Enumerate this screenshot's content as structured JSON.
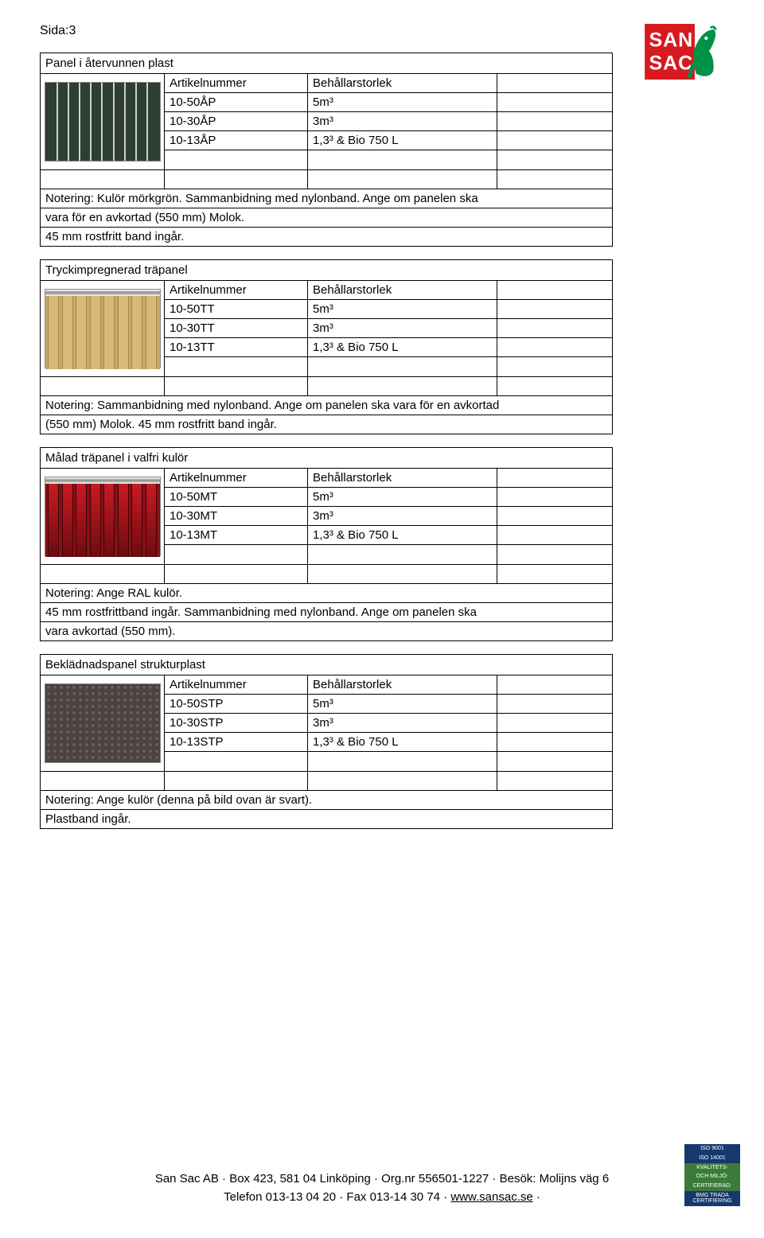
{
  "page_label": "Sida:3",
  "logo": {
    "text_top": "SAN",
    "text_bottom": "SAC",
    "colors": {
      "red": "#d71920",
      "green": "#009247",
      "white": "#ffffff"
    }
  },
  "headers": {
    "artnr": "Artikelnummer",
    "size": "Behållarstorlek"
  },
  "sections": [
    {
      "title": "Panel i återvunnen plast",
      "swatch_type": "green",
      "rows": [
        {
          "artnr": "10-50ÅP",
          "size": "5m³"
        },
        {
          "artnr": "10-30ÅP",
          "size": "3m³"
        },
        {
          "artnr": "10-13ÅP",
          "size": "1,3³ & Bio 750 L"
        }
      ],
      "note_lines": [
        "Notering: Kulör mörkgrön. Sammanbidning med nylonband. Ange om panelen ska",
        "vara för en avkortad (550 mm) Molok.",
        "45 mm rostfritt band ingår."
      ]
    },
    {
      "title": "Tryckimpregnerad träpanel",
      "swatch_type": "wood",
      "rows": [
        {
          "artnr": "10-50TT",
          "size": "5m³"
        },
        {
          "artnr": "10-30TT",
          "size": "3m³"
        },
        {
          "artnr": "10-13TT",
          "size": "1,3³ & Bio 750 L"
        }
      ],
      "note_lines": [
        "Notering: Sammanbidning med nylonband. Ange om panelen ska vara för en avkortad",
        "(550 mm) Molok. 45 mm rostfritt band ingår."
      ]
    },
    {
      "title": "Målad träpanel i valfri kulör",
      "swatch_type": "red",
      "rows": [
        {
          "artnr": "10-50MT",
          "size": "5m³"
        },
        {
          "artnr": "10-30MT",
          "size": "3m³"
        },
        {
          "artnr": "10-13MT",
          "size": "1,3³ & Bio 750 L"
        }
      ],
      "note_lines": [
        "Notering: Ange RAL kulör.",
        "45 mm rostfrittband ingår. Sammanbidning med nylonband. Ange om panelen ska",
        "vara avkortad (550 mm)."
      ]
    },
    {
      "title": "Beklädnadspanel strukturplast",
      "swatch_type": "struct",
      "rows": [
        {
          "artnr": "10-50STP",
          "size": "5m³"
        },
        {
          "artnr": "10-30STP",
          "size": "3m³"
        },
        {
          "artnr": "10-13STP",
          "size": "1,3³ & Bio 750 L"
        }
      ],
      "note_lines": [
        "Notering: Ange kulör (denna på bild ovan är svart).",
        "Plastband ingår."
      ]
    }
  ],
  "footer": {
    "line1_parts": [
      "San Sac AB",
      "Box 423, 581 04 Linköping",
      "Org.nr 556501-1227",
      "Besök: Molijns väg 6"
    ],
    "line2_parts": [
      "Telefon 013-13 04 20",
      "Fax 013-14 30 74"
    ],
    "url": "www.sansac.se",
    "sep": "·"
  },
  "cert": {
    "lines": [
      "ISO 9001",
      "ISO 14001",
      "KVALITETS-",
      "OCH MILJÖ-",
      "CERTIFIERAD:",
      "BMG TRADA CERTIFIERING"
    ],
    "colors": {
      "blue": "#16386f",
      "green": "#3a7b3a"
    }
  }
}
